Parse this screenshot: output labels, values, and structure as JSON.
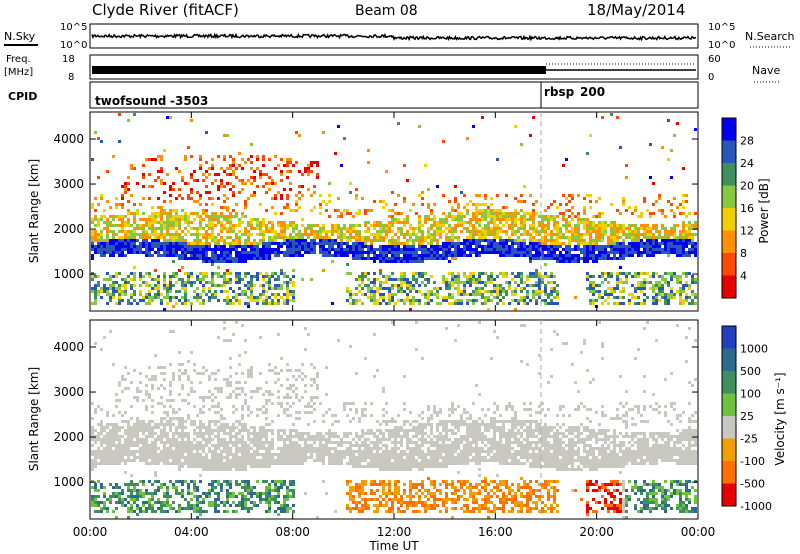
{
  "header": {
    "station": "Clyde River (fitACF)",
    "beam": "Beam 08",
    "date": "18/May/2014"
  },
  "status_strips": {
    "nsky_label": "N.Sky",
    "nsearch_label": "N.Search",
    "noise_ticks": [
      "10^5",
      "10^0"
    ],
    "freq_label": "Freq.",
    "freq_unit": "[MHz]",
    "freq_ticks": [
      "18",
      "8"
    ],
    "nave_label": "Nave",
    "nave_ticks": [
      "60",
      "0"
    ],
    "cpid_label": "CPID",
    "cpid_modes": [
      {
        "name": "twofsound",
        "id": "-3503",
        "start_hour": 0
      },
      {
        "name": "rbsp",
        "id": "200",
        "start_hour": 18
      }
    ]
  },
  "chart_data": [
    {
      "type": "heatmap",
      "name": "power",
      "ylabel": "Slant Range [km]",
      "ylim": [
        180,
        4600
      ],
      "yticks": [
        "1000",
        "2000",
        "3000",
        "4000"
      ],
      "colorbar_label": "Power [dB]",
      "colorbar_ticks": [
        "4",
        "8",
        "12",
        "16",
        "20",
        "24",
        "28"
      ],
      "colors": [
        "#0000ee",
        "#2a56b8",
        "#3d8f5e",
        "#86c840",
        "#f0d000",
        "#ff9000",
        "#ff4800",
        "#e80000"
      ],
      "bands": [
        {
          "from_hour": 0,
          "to_hour": 24,
          "range_km": [
            1450,
            1800
          ],
          "level": "high"
        },
        {
          "from_hour": 0,
          "to_hour": 24,
          "range_km": [
            1800,
            2300
          ],
          "level": "medium"
        },
        {
          "from_hour": 0,
          "to_hour": 8,
          "range_km": [
            400,
            1100
          ],
          "level": "high"
        },
        {
          "from_hour": 10,
          "to_hour": 18,
          "range_km": [
            500,
            800
          ],
          "level": "medium"
        },
        {
          "from_hour": 1,
          "to_hour": 8,
          "range_km": [
            2800,
            3600
          ],
          "level": "low"
        }
      ]
    },
    {
      "type": "heatmap",
      "name": "velocity",
      "ylabel": "Slant Range [km]",
      "ylim": [
        180,
        4600
      ],
      "yticks": [
        "1000",
        "2000",
        "3000",
        "4000"
      ],
      "colorbar_label": "Velocity  [m s⁻¹]",
      "colorbar_ticks": [
        "1000",
        "500",
        "100",
        "25",
        "-25",
        "-100",
        "-500",
        "-1000"
      ],
      "colors": [
        "#2040c0",
        "#2d6b8e",
        "#3f8f5a",
        "#6fc040",
        "#c8c8c0",
        "#f0a000",
        "#ff7000",
        "#e80000"
      ],
      "xlabel": "Time UT",
      "xticks": [
        "00:00",
        "04:00",
        "08:00",
        "12:00",
        "16:00",
        "20:00",
        "00:00"
      ],
      "xlim_hours": [
        0,
        24
      ]
    }
  ]
}
